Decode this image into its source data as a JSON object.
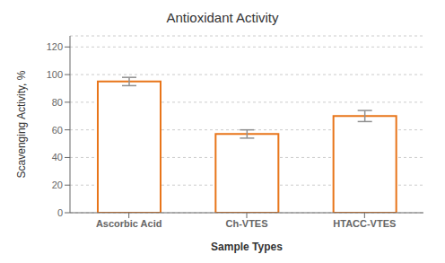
{
  "chart_data": {
    "type": "bar",
    "title": "Antioxidant Activity",
    "xlabel": "Sample Types",
    "ylabel": "Scavenging Activity, %",
    "categories": [
      "Ascorbic Acid",
      "Ch-VTES",
      "HTACC-VTES"
    ],
    "values": [
      95,
      57,
      70
    ],
    "errors": [
      3,
      3,
      4
    ],
    "color": "#E8751A",
    "ylim": [
      0,
      128
    ],
    "yticks": [
      0,
      20,
      40,
      60,
      80,
      100,
      120
    ],
    "grid": true
  }
}
